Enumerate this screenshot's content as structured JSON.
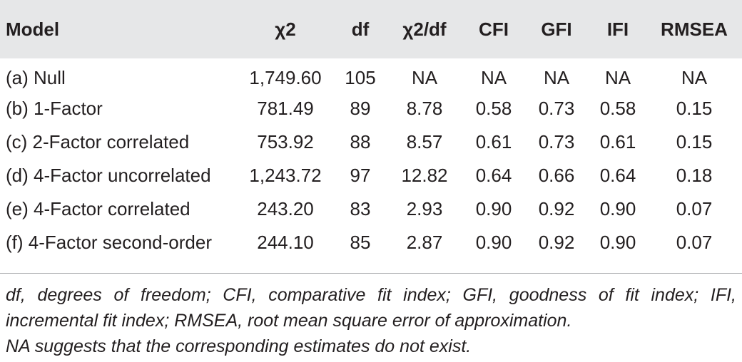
{
  "table": {
    "headers": [
      "Model",
      "χ2",
      "df",
      "χ2/df",
      "CFI",
      "GFI",
      "IFI",
      "RMSEA"
    ],
    "rows": [
      [
        "(a) Null",
        "1,749.60",
        "105",
        "NA",
        "NA",
        "NA",
        "NA",
        "NA"
      ],
      [
        "(b) 1-Factor",
        "781.49",
        "89",
        "8.78",
        "0.58",
        "0.73",
        "0.58",
        "0.15"
      ],
      [
        "(c) 2-Factor correlated",
        "753.92",
        "88",
        "8.57",
        "0.61",
        "0.73",
        "0.61",
        "0.15"
      ],
      [
        "(d) 4-Factor uncorrelated",
        "1,243.72",
        "97",
        "12.82",
        "0.64",
        "0.66",
        "0.64",
        "0.18"
      ],
      [
        "(e) 4-Factor correlated",
        "243.20",
        "83",
        "2.93",
        "0.90",
        "0.92",
        "0.90",
        "0.07"
      ],
      [
        "(f) 4-Factor second-order",
        "244.10",
        "85",
        "2.87",
        "0.90",
        "0.92",
        "0.90",
        "0.07"
      ]
    ]
  },
  "notes": {
    "abbreviations": "df, degrees of freedom; CFI, comparative fit index; GFI, goodness of fit index; IFI, incremental fit index; RMSEA, root mean square error of approximation.",
    "na_note": "NA suggests that the corresponding estimates do not exist."
  }
}
